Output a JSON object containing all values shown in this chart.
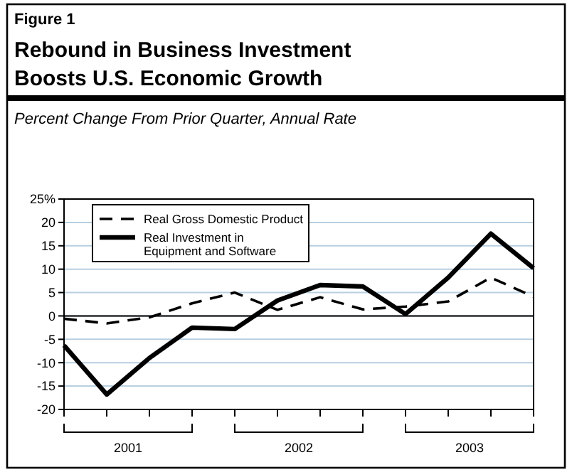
{
  "chart_data": {
    "type": "line",
    "title": "Rebound in Business Investment Boosts U.S. Economic Growth",
    "subtitle": "Percent Change From Prior Quarter, Annual Rate",
    "annotations": [
      "Figure 1",
      "2001",
      "2002",
      "2003"
    ],
    "categories": [
      null,
      null,
      null,
      null,
      null,
      null,
      null,
      null,
      null,
      null,
      null,
      null
    ],
    "series": [
      {
        "name": "Real Gross Domestic Product",
        "color": "#000000",
        "line_style": "dashed",
        "values": [
          -0.6,
          -1.6,
          -0.3,
          2.7,
          5.0,
          1.3,
          4.0,
          1.4,
          2.0,
          3.1,
          8.2,
          4.1
        ]
      },
      {
        "name": "Real Investment in Equipment and Software",
        "color": "#000000",
        "line_style": "solid",
        "values": [
          -6.3,
          -16.8,
          -9.0,
          -2.5,
          -2.8,
          3.3,
          6.6,
          6.3,
          0.4,
          8.2,
          17.6,
          10.2
        ]
      }
    ],
    "ylim": [
      -20,
      25
    ],
    "yticks": [
      -20,
      -15,
      -10,
      -5,
      0,
      5,
      10,
      15,
      {
        "value": 20,
        "label": "20"
      },
      {
        "value": 25,
        "label": "25%"
      }
    ],
    "ref_lines": [
      {
        "axis": "y",
        "value": 0,
        "color": "#000000"
      }
    ],
    "grid": "y",
    "legend": "top left",
    "marker": "none"
  }
}
